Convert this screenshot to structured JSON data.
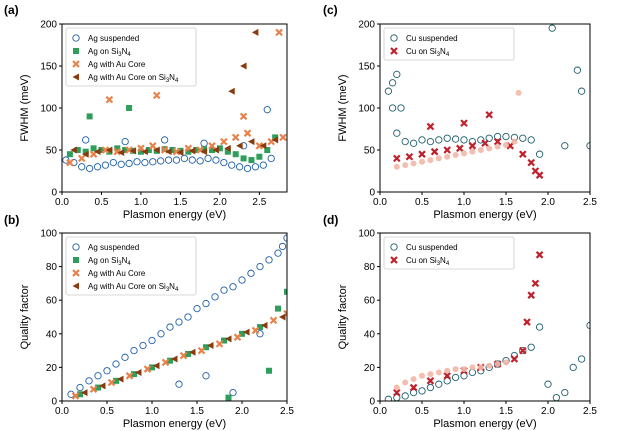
{
  "chart_data": [
    {
      "panel": "(a)",
      "type": "scatter",
      "xlabel": "Plasmon energy (eV)",
      "ylabel": "FWHM (meV)",
      "xlim": [
        0,
        2.85
      ],
      "ylim": [
        0,
        200
      ],
      "xticks": [
        "0.0",
        "0.5",
        "1.0",
        "1.5",
        "2.0",
        "2.5"
      ],
      "xtick_values": [
        0,
        0.5,
        1.0,
        1.5,
        2.0,
        2.5
      ],
      "yticks": [
        "0",
        "50",
        "100",
        "150",
        "200"
      ],
      "ytick_values": [
        0,
        50,
        100,
        150,
        200
      ],
      "legend_position": "top-left",
      "series": [
        {
          "name": "Ag suspended",
          "label_main": "Ag suspended",
          "label_sub": "",
          "label_after": "",
          "marker": "circle-open",
          "color": "#1f5fa8",
          "x": [
            0.05,
            0.15,
            0.25,
            0.35,
            0.45,
            0.55,
            0.65,
            0.75,
            0.85,
            0.95,
            1.05,
            1.15,
            1.25,
            1.35,
            1.45,
            1.55,
            1.65,
            1.75,
            1.85,
            1.95,
            2.05,
            2.15,
            2.25,
            2.35,
            2.45,
            2.55,
            2.65,
            0.3,
            0.8,
            1.3,
            1.8,
            2.3,
            2.6
          ],
          "y": [
            38,
            35,
            30,
            28,
            30,
            32,
            35,
            33,
            34,
            36,
            35,
            36,
            37,
            38,
            38,
            40,
            38,
            37,
            40,
            38,
            35,
            32,
            30,
            28,
            30,
            32,
            40,
            62,
            60,
            62,
            58,
            55,
            98
          ]
        },
        {
          "name": "Ag on Si3N4",
          "label_main": "Ag on Si",
          "label_sub": "3",
          "label_after": "N",
          "label_sub2": "4",
          "marker": "square",
          "color": "#2e9e5b",
          "x": [
            0.1,
            0.2,
            0.3,
            0.4,
            0.5,
            0.6,
            0.7,
            0.8,
            0.9,
            1.0,
            1.1,
            1.2,
            1.3,
            1.4,
            1.5,
            1.6,
            1.7,
            1.8,
            1.9,
            2.0,
            2.1,
            2.2,
            2.3,
            2.4,
            2.5,
            2.6,
            0.35,
            0.85,
            2.7
          ],
          "y": [
            45,
            50,
            48,
            52,
            50,
            48,
            52,
            50,
            49,
            48,
            50,
            49,
            51,
            50,
            49,
            48,
            50,
            51,
            50,
            52,
            48,
            45,
            40,
            38,
            42,
            50,
            90,
            100,
            65
          ]
        },
        {
          "name": "Ag with Au Core",
          "label_main": "Ag with Au Core",
          "label_sub": "",
          "label_after": "",
          "marker": "x",
          "color": "#e8824a",
          "x": [
            0.1,
            0.25,
            0.4,
            0.55,
            0.7,
            0.85,
            1.0,
            1.15,
            1.3,
            1.45,
            1.6,
            1.75,
            1.9,
            2.05,
            2.2,
            2.35,
            2.5,
            2.65,
            2.8,
            0.6,
            1.2,
            2.3,
            2.75
          ],
          "y": [
            35,
            40,
            45,
            50,
            48,
            50,
            52,
            55,
            50,
            48,
            52,
            50,
            55,
            60,
            65,
            70,
            55,
            60,
            65,
            110,
            115,
            90,
            190
          ]
        },
        {
          "name": "Ag with Au Core on Si3N4",
          "label_main": "Ag with Au Core on Si",
          "label_sub": "3",
          "label_after": "N",
          "label_sub2": "4",
          "marker": "triangle-left",
          "color": "#8a3a0f",
          "x": [
            0.15,
            0.3,
            0.45,
            0.6,
            0.75,
            0.9,
            1.05,
            1.2,
            1.35,
            1.5,
            1.65,
            1.8,
            1.95,
            2.1,
            2.25,
            2.4,
            2.55,
            2.7,
            2.15,
            2.3,
            2.45
          ],
          "y": [
            50,
            45,
            48,
            50,
            47,
            49,
            48,
            50,
            48,
            47,
            49,
            48,
            50,
            52,
            55,
            60,
            55,
            62,
            120,
            150,
            190
          ]
        }
      ]
    },
    {
      "panel": "(c)",
      "type": "scatter",
      "xlabel": "Plasmon energy (eV)",
      "ylabel": "FWHM (meV)",
      "xlim": [
        0,
        2.5
      ],
      "ylim": [
        0,
        200
      ],
      "xticks": [
        "0.0",
        "0.5",
        "1.0",
        "1.5",
        "2.0",
        "2.5"
      ],
      "xtick_values": [
        0,
        0.5,
        1.0,
        1.5,
        2.0,
        2.5
      ],
      "yticks": [
        "0",
        "50",
        "100",
        "150",
        "200"
      ],
      "ytick_values": [
        0,
        50,
        100,
        150,
        200
      ],
      "legend_position": "top-left",
      "series": [
        {
          "name": "Cu suspended",
          "label_main": "Cu suspended",
          "label_sub": "",
          "label_after": "",
          "marker": "circle-open",
          "color": "#1f5f6e",
          "x": [
            0.1,
            0.15,
            0.2,
            0.25,
            0.3,
            0.4,
            0.5,
            0.6,
            0.7,
            0.8,
            0.9,
            1.0,
            1.1,
            1.2,
            1.3,
            1.4,
            1.5,
            1.6,
            1.7,
            1.8,
            1.9,
            2.05,
            2.2,
            2.35,
            2.4,
            2.5,
            0.15,
            0.2
          ],
          "y": [
            120,
            130,
            140,
            100,
            60,
            58,
            62,
            60,
            62,
            64,
            63,
            62,
            60,
            62,
            64,
            66,
            66,
            65,
            64,
            62,
            45,
            195,
            55,
            145,
            120,
            55,
            100,
            70
          ]
        },
        {
          "name": "Cu on Si3N4",
          "label_main": "Cu on Si",
          "label_sub": "3",
          "label_after": "N",
          "label_sub2": "4",
          "marker": "x",
          "color": "#c0202a",
          "x": [
            0.2,
            0.35,
            0.5,
            0.65,
            0.8,
            0.95,
            1.1,
            1.25,
            1.4,
            1.55,
            1.7,
            1.8,
            1.85,
            1.9,
            0.6,
            1.0,
            1.3
          ],
          "y": [
            40,
            42,
            45,
            48,
            50,
            52,
            55,
            58,
            60,
            55,
            45,
            35,
            25,
            20,
            78,
            82,
            92
          ]
        },
        {
          "name": "Cu (light series)",
          "label_main": "",
          "marker": "circle-filled",
          "color": "#f2b6a6",
          "legend": false,
          "x": [
            0.2,
            0.3,
            0.4,
            0.5,
            0.6,
            0.7,
            0.8,
            0.9,
            1.0,
            1.1,
            1.2,
            1.3,
            1.4,
            1.5,
            1.6,
            1.65
          ],
          "y": [
            30,
            32,
            34,
            36,
            38,
            40,
            42,
            44,
            46,
            48,
            50,
            52,
            54,
            56,
            60,
            118
          ]
        }
      ]
    },
    {
      "panel": "(b)",
      "type": "scatter",
      "xlabel": "Plasmon energy (eV)",
      "ylabel": "Quality factor",
      "xlim": [
        0,
        2.5
      ],
      "ylim": [
        0,
        100
      ],
      "xticks": [
        "0.0",
        "0.5",
        "1.0",
        "1.5",
        "2.0",
        "2.5"
      ],
      "xtick_values": [
        0,
        0.5,
        1.0,
        1.5,
        2.0,
        2.5
      ],
      "yticks": [
        "0",
        "20",
        "40",
        "60",
        "80",
        "100"
      ],
      "ytick_values": [
        0,
        20,
        40,
        60,
        80,
        100
      ],
      "legend_position": "top-left",
      "series": [
        {
          "name": "Ag suspended",
          "label_main": "Ag suspended",
          "label_sub": "",
          "label_after": "",
          "marker": "circle-open",
          "color": "#1f5fa8",
          "x": [
            0.1,
            0.2,
            0.3,
            0.4,
            0.5,
            0.6,
            0.7,
            0.8,
            0.9,
            1.0,
            1.1,
            1.2,
            1.3,
            1.4,
            1.5,
            1.6,
            1.7,
            1.8,
            1.9,
            2.0,
            2.1,
            2.2,
            2.3,
            2.4,
            2.45,
            2.5,
            1.3,
            1.6,
            1.9,
            2.2
          ],
          "y": [
            4,
            8,
            12,
            15,
            18,
            22,
            26,
            30,
            33,
            36,
            40,
            44,
            47,
            50,
            55,
            58,
            62,
            66,
            68,
            72,
            76,
            80,
            84,
            88,
            92,
            97,
            10,
            15,
            5,
            40
          ]
        },
        {
          "name": "Ag on Si3N4",
          "label_main": "Ag on Si",
          "label_sub": "3",
          "label_after": "N",
          "label_sub2": "4",
          "marker": "square",
          "color": "#2e9e5b",
          "x": [
            0.2,
            0.4,
            0.6,
            0.8,
            1.0,
            1.2,
            1.4,
            1.6,
            1.8,
            2.0,
            2.2,
            2.4,
            2.5,
            1.85,
            2.3
          ],
          "y": [
            4,
            8,
            12,
            16,
            20,
            24,
            28,
            32,
            36,
            40,
            44,
            55,
            65,
            2,
            18
          ]
        },
        {
          "name": "Ag with Au Core",
          "label_main": "Ag with Au Core",
          "label_sub": "",
          "label_after": "",
          "marker": "x",
          "color": "#e8824a",
          "x": [
            0.15,
            0.35,
            0.55,
            0.75,
            0.95,
            1.15,
            1.35,
            1.55,
            1.75,
            1.95,
            2.15,
            2.35,
            2.5
          ],
          "y": [
            3,
            7,
            11,
            15,
            19,
            23,
            27,
            30,
            34,
            38,
            42,
            48,
            52
          ]
        },
        {
          "name": "Ag with Au Core on Si3N4",
          "label_main": "Ag with Au Core on Si",
          "label_sub": "3",
          "label_after": "N",
          "label_sub2": "4",
          "marker": "triangle-left",
          "color": "#8a3a0f",
          "x": [
            0.25,
            0.45,
            0.65,
            0.85,
            1.05,
            1.25,
            1.45,
            1.65,
            1.85,
            2.05,
            2.25,
            2.45
          ],
          "y": [
            5,
            9,
            13,
            17,
            21,
            25,
            29,
            33,
            37,
            41,
            45,
            50
          ]
        }
      ]
    },
    {
      "panel": "(d)",
      "type": "scatter",
      "xlabel": "Plasmon energy (eV)",
      "ylabel": "Quality factor",
      "xlim": [
        0,
        2.5
      ],
      "ylim": [
        0,
        100
      ],
      "xticks": [
        "0.0",
        "0.5",
        "1.0",
        "1.5",
        "2.0",
        "2.5"
      ],
      "xtick_values": [
        0,
        0.5,
        1.0,
        1.5,
        2.0,
        2.5
      ],
      "yticks": [
        "0",
        "20",
        "40",
        "60",
        "80",
        "100"
      ],
      "ytick_values": [
        0,
        20,
        40,
        60,
        80,
        100
      ],
      "legend_position": "top-left",
      "series": [
        {
          "name": "Cu suspended",
          "label_main": "Cu suspended",
          "label_sub": "",
          "label_after": "",
          "marker": "circle-open",
          "color": "#1f5f6e",
          "x": [
            0.1,
            0.2,
            0.3,
            0.4,
            0.5,
            0.6,
            0.7,
            0.8,
            0.9,
            1.0,
            1.1,
            1.2,
            1.3,
            1.4,
            1.5,
            1.6,
            1.7,
            1.8,
            1.9,
            2.0,
            2.1,
            2.2,
            2.3,
            2.4,
            2.5
          ],
          "y": [
            1,
            2,
            3,
            5,
            6,
            8,
            10,
            12,
            14,
            15,
            17,
            18,
            20,
            22,
            24,
            27,
            30,
            32,
            44,
            10,
            2,
            5,
            20,
            25,
            45
          ]
        },
        {
          "name": "Cu on Si3N4",
          "label_main": "Cu on Si",
          "label_sub": "3",
          "label_after": "N",
          "label_sub2": "4",
          "marker": "x",
          "color": "#c0202a",
          "x": [
            0.2,
            0.4,
            0.6,
            0.8,
            1.0,
            1.2,
            1.4,
            1.6,
            1.7,
            1.75,
            1.8,
            1.85,
            1.9
          ],
          "y": [
            5,
            8,
            12,
            15,
            18,
            20,
            22,
            25,
            30,
            47,
            63,
            70,
            87
          ]
        },
        {
          "name": "Cu (light series)",
          "label_main": "",
          "marker": "circle-filled",
          "color": "#f2b6a6",
          "legend": false,
          "x": [
            0.2,
            0.3,
            0.4,
            0.5,
            0.6,
            0.7,
            0.8,
            0.9,
            1.0,
            1.1,
            1.2,
            1.3,
            1.4,
            1.5
          ],
          "y": [
            8,
            11,
            13,
            15,
            16,
            17,
            18,
            19,
            19,
            20,
            20,
            21,
            22,
            23
          ]
        }
      ]
    }
  ]
}
